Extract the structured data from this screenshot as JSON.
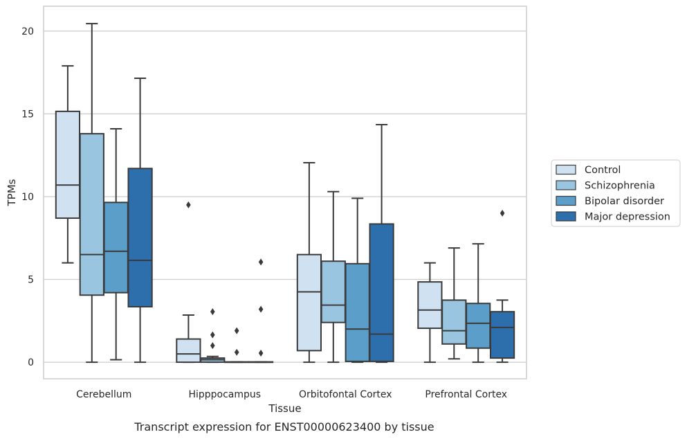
{
  "chart_data": {
    "type": "box",
    "caption": "Transcript expression for ENST00000623400 by tissue",
    "xlabel": "Tissue",
    "ylabel": "TPMs",
    "ylim": [
      -1,
      21.5
    ],
    "yticks": [
      0,
      5,
      10,
      15,
      20
    ],
    "grid": true,
    "legend_position": "right, outside plot",
    "categories": [
      "Cerebellum",
      "Hipppocampus",
      "Orbitofontal Cortex",
      "Prefrontal Cortex"
    ],
    "series": [
      {
        "name": "Control",
        "color": "#d0e1f2",
        "boxes": [
          {
            "whislo": 6.0,
            "q1": 8.7,
            "med": 10.7,
            "q3": 15.15,
            "whishi": 17.9,
            "fliers": []
          },
          {
            "whislo": 0.0,
            "q1": 0.0,
            "med": 0.5,
            "q3": 1.4,
            "whishi": 2.85,
            "fliers": [
              9.5
            ]
          },
          {
            "whislo": 0.0,
            "q1": 0.7,
            "med": 4.25,
            "q3": 6.5,
            "whishi": 12.05,
            "fliers": []
          },
          {
            "whislo": 0.0,
            "q1": 2.05,
            "med": 3.15,
            "q3": 4.85,
            "whishi": 6.0,
            "fliers": []
          }
        ]
      },
      {
        "name": "Schizophrenia",
        "color": "#9ac5e0",
        "boxes": [
          {
            "whislo": 0.0,
            "q1": 4.05,
            "med": 6.5,
            "q3": 13.8,
            "whishi": 20.45,
            "fliers": []
          },
          {
            "whislo": 0.0,
            "q1": 0.0,
            "med": 0.15,
            "q3": 0.25,
            "whishi": 0.35,
            "fliers": [
              1.0,
              1.65,
              3.05
            ]
          },
          {
            "whislo": 0.0,
            "q1": 2.4,
            "med": 3.45,
            "q3": 6.1,
            "whishi": 10.3,
            "fliers": []
          },
          {
            "whislo": 0.2,
            "q1": 1.1,
            "med": 1.9,
            "q3": 3.75,
            "whishi": 6.9,
            "fliers": []
          }
        ]
      },
      {
        "name": "Bipolar disorder",
        "color": "#5b9ec9",
        "boxes": [
          {
            "whislo": 0.15,
            "q1": 4.2,
            "med": 6.7,
            "q3": 9.65,
            "whishi": 14.1,
            "fliers": []
          },
          {
            "whislo": 0.0,
            "q1": 0.0,
            "med": 0.0,
            "q3": 0.02,
            "whishi": 0.02,
            "fliers": [
              0.6,
              1.9
            ]
          },
          {
            "whislo": 0.0,
            "q1": 0.05,
            "med": 2.0,
            "q3": 5.95,
            "whishi": 9.9,
            "fliers": []
          },
          {
            "whislo": 0.0,
            "q1": 0.85,
            "med": 2.35,
            "q3": 3.55,
            "whishi": 7.15,
            "fliers": []
          }
        ]
      },
      {
        "name": "Major depression",
        "color": "#2d6fac",
        "boxes": [
          {
            "whislo": 0.0,
            "q1": 3.35,
            "med": 6.15,
            "q3": 11.7,
            "whishi": 17.15,
            "fliers": []
          },
          {
            "whislo": 0.0,
            "q1": 0.0,
            "med": 0.0,
            "q3": 0.02,
            "whishi": 0.02,
            "fliers": [
              0.55,
              3.2,
              6.05
            ]
          },
          {
            "whislo": 0.0,
            "q1": 0.05,
            "med": 1.7,
            "q3": 8.35,
            "whishi": 14.35,
            "fliers": []
          },
          {
            "whislo": 0.0,
            "q1": 0.25,
            "med": 2.1,
            "q3": 3.05,
            "whishi": 3.75,
            "fliers": [
              9.0
            ]
          }
        ]
      }
    ]
  }
}
